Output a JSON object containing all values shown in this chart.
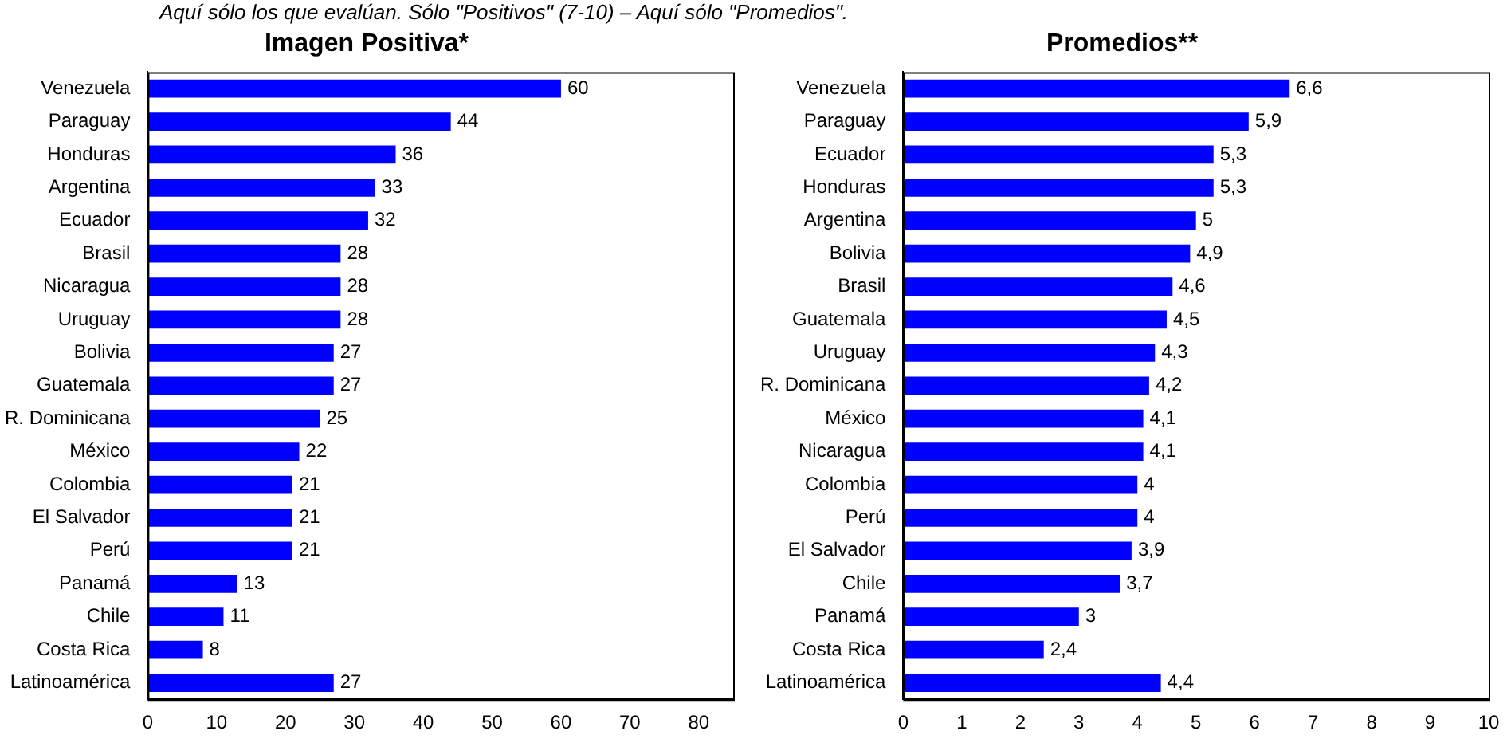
{
  "chart_data": [
    {
      "type": "bar",
      "orientation": "horizontal",
      "title": "Imagen Positiva*",
      "annotations": [
        "Aquí sólo los que evalúan. Sólo \"Positivos\" (7-10) – Aquí sólo \"Promedios\"."
      ],
      "categories": [
        "Venezuela",
        "Paraguay",
        "Honduras",
        "Argentina",
        "Ecuador",
        "Brasil",
        "Nicaragua",
        "Uruguay",
        "Bolivia",
        "Guatemala",
        "R. Dominicana",
        "México",
        "Colombia",
        "El Salvador",
        "Perú",
        "Panamá",
        "Chile",
        "Costa Rica",
        "Latinoamérica"
      ],
      "values": [
        60,
        44,
        36,
        33,
        32,
        28,
        28,
        28,
        27,
        27,
        25,
        22,
        21,
        21,
        21,
        13,
        11,
        8,
        27
      ],
      "color": "#0000ff",
      "xlim": [
        0,
        85
      ],
      "xticks": [
        0,
        10,
        20,
        30,
        40,
        50,
        60,
        70,
        80
      ],
      "grid": false,
      "data_labels": true
    },
    {
      "type": "bar",
      "orientation": "horizontal",
      "title": "Promedios**",
      "categories": [
        "Venezuela",
        "Paraguay",
        "Ecuador",
        "Honduras",
        "Argentina",
        "Bolivia",
        "Brasil",
        "Guatemala",
        "Uruguay",
        "R. Dominicana",
        "México",
        "Nicaragua",
        "Colombia",
        "Perú",
        "El Salvador",
        "Chile",
        "Panamá",
        "Costa Rica",
        "Latinoamérica"
      ],
      "values": [
        6.6,
        5.9,
        5.3,
        5.3,
        5,
        4.9,
        4.6,
        4.5,
        4.3,
        4.2,
        4.1,
        4.1,
        4,
        4,
        3.9,
        3.7,
        3,
        2.4,
        4.4
      ],
      "value_labels": [
        "6,6",
        "5,9",
        "5,3",
        "5,3",
        "5",
        "4,9",
        "4,6",
        "4,5",
        "4,3",
        "4,2",
        "4,1",
        "4,1",
        "4",
        "4",
        "3,9",
        "3,7",
        "3",
        "2,4",
        "4,4"
      ],
      "color": "#0000ff",
      "xlim": [
        0,
        10
      ],
      "xticks": [
        0,
        1,
        2,
        3,
        4,
        5,
        6,
        7,
        8,
        9,
        10
      ],
      "grid": false
    }
  ]
}
